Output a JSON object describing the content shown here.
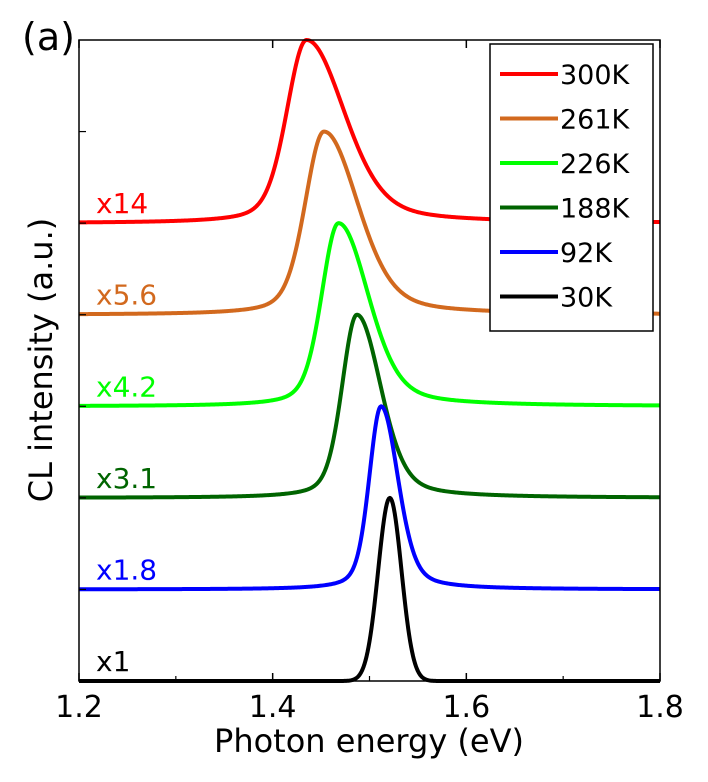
{
  "panel_label": "(a)",
  "chart_data": {
    "type": "line",
    "xlabel": "Photon energy (eV)",
    "ylabel": "CL intensity (a.u.)",
    "xlim": [
      1.2,
      1.8
    ],
    "xticks": [
      1.2,
      1.4,
      1.6,
      1.8
    ],
    "xtick_labels": [
      "1.2",
      "1.4",
      "1.6",
      "1.8"
    ],
    "ylim": [
      0,
      7
    ],
    "grid": false,
    "legend_position": "top-right",
    "series": [
      {
        "name": "300K",
        "color": "#ff0000",
        "scale_label": "x14",
        "offset": 5.0,
        "peak_x": 1.435,
        "height": 2.0,
        "width_left": 0.02,
        "width_right": 0.038
      },
      {
        "name": "261K",
        "color": "#d2691e",
        "scale_label": "x5.6",
        "offset": 4.0,
        "peak_x": 1.453,
        "height": 2.0,
        "width_left": 0.019,
        "width_right": 0.034
      },
      {
        "name": "226K",
        "color": "#00ff00",
        "scale_label": "x4.2",
        "offset": 3.0,
        "peak_x": 1.468,
        "height": 2.0,
        "width_left": 0.017,
        "width_right": 0.03
      },
      {
        "name": "188K",
        "color": "#006400",
        "scale_label": "x3.1",
        "offset": 2.0,
        "peak_x": 1.487,
        "height": 2.0,
        "width_left": 0.015,
        "width_right": 0.024
      },
      {
        "name": "92K",
        "color": "#0000ff",
        "scale_label": "x1.8",
        "offset": 1.0,
        "peak_x": 1.512,
        "height": 2.0,
        "width_left": 0.012,
        "width_right": 0.017
      },
      {
        "name": "30K",
        "color": "#000000",
        "scale_label": "x1",
        "offset": 0.0,
        "peak_x": 1.521,
        "height": 2.0,
        "width_left": 0.012,
        "width_right": 0.012
      }
    ]
  }
}
